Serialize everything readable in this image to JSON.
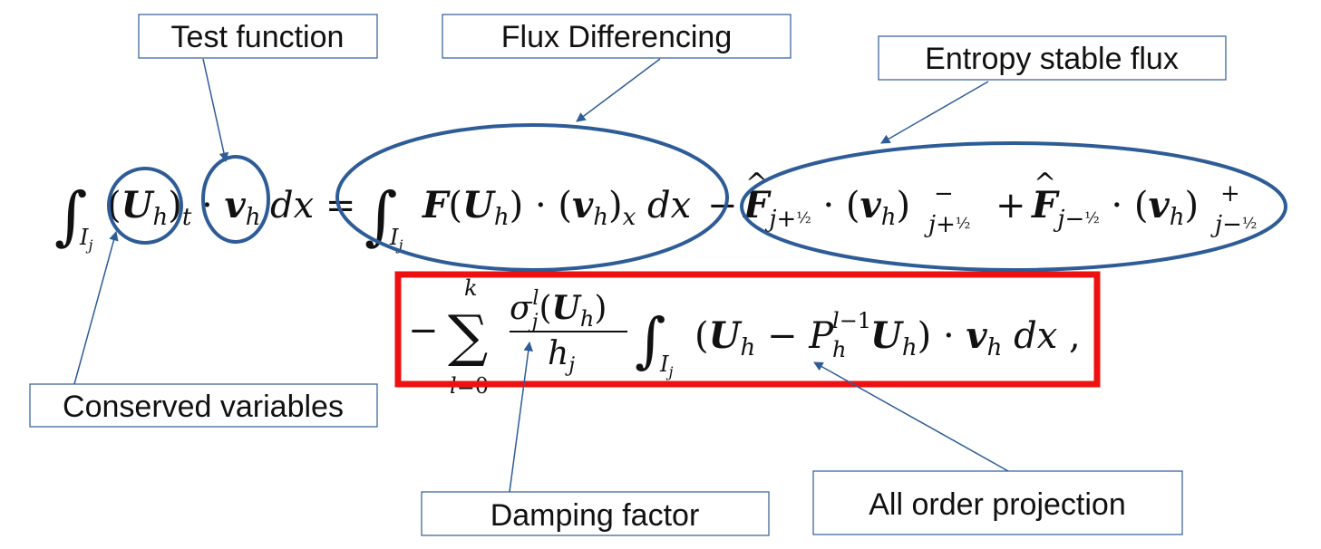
{
  "colors": {
    "annotation": "#2e5c97",
    "highlight": "#ee1111",
    "text": "#111111"
  },
  "labels": {
    "test_function": "Test function",
    "flux_differencing": "Flux Differencing",
    "entropy_stable_flux": "Entropy stable flux",
    "conserved_variables": "Conserved variables",
    "damping_factor": "Damping factor",
    "all_order_projection": "All order projection"
  }
}
